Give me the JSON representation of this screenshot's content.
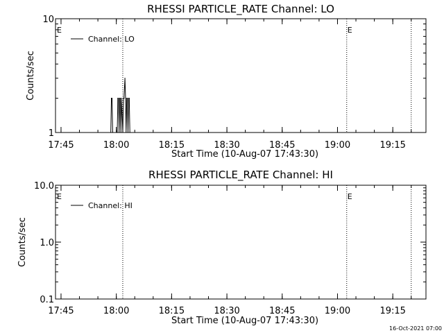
{
  "footer": {
    "timestamp": "16-Oct-2021 07:00"
  },
  "chart_data": [
    {
      "type": "line",
      "title": "RHESSI PARTICLE_RATE Channel: LO",
      "xlabel": "Start Time (10-Aug-07 17:43:30)",
      "ylabel": "Counts/sec",
      "yscale": "log",
      "xlim": [
        "17:43:30",
        "19:24:00"
      ],
      "ylim": [
        1,
        10
      ],
      "x_ticks": [
        "17:45",
        "18:00",
        "18:15",
        "18:30",
        "18:45",
        "19:00",
        "19:15"
      ],
      "y_ticks": [
        "1",
        "10"
      ],
      "legend": {
        "position": "top-left",
        "entries": [
          "Channel: LO"
        ]
      },
      "markers": [
        {
          "time": "18:01:45",
          "label": ""
        },
        {
          "time": "19:02:30",
          "label": "E"
        },
        {
          "time": "19:20:00",
          "label": ""
        }
      ],
      "corner_label": "E",
      "series": [
        {
          "name": "Channel: LO",
          "x": [
            "17:58:30",
            "17:58:40",
            "17:58:50",
            "17:59:00",
            "18:00:15",
            "18:00:25",
            "18:00:35",
            "18:00:45",
            "18:00:55",
            "18:01:05",
            "18:01:15",
            "18:01:25",
            "18:01:45",
            "18:01:55",
            "18:02:05",
            "18:02:20",
            "18:02:30",
            "18:02:40",
            "18:02:50",
            "18:03:00",
            "18:03:10",
            "18:03:20",
            "18:03:30",
            "18:03:40"
          ],
          "y": [
            1,
            2,
            2,
            1,
            1,
            2,
            2,
            1,
            2,
            2,
            1,
            2,
            1,
            2,
            2,
            3,
            2,
            1,
            2,
            2,
            1,
            2,
            2,
            1
          ]
        }
      ]
    },
    {
      "type": "line",
      "title": "RHESSI PARTICLE_RATE Channel: HI",
      "xlabel": "Start Time (10-Aug-07 17:43:30)",
      "ylabel": "Counts/sec",
      "yscale": "log",
      "xlim": [
        "17:43:30",
        "19:24:00"
      ],
      "ylim": [
        0.1,
        10
      ],
      "x_ticks": [
        "17:45",
        "18:00",
        "18:15",
        "18:30",
        "18:45",
        "19:00",
        "19:15"
      ],
      "y_ticks": [
        "0.1",
        "1.0",
        "10.0"
      ],
      "legend": {
        "position": "top-left",
        "entries": [
          "Channel: HI"
        ]
      },
      "markers": [
        {
          "time": "18:01:45",
          "label": ""
        },
        {
          "time": "19:02:30",
          "label": "E"
        },
        {
          "time": "19:20:00",
          "label": ""
        }
      ],
      "corner_label": "E",
      "series": [
        {
          "name": "Channel: HI",
          "x": [],
          "y": []
        }
      ]
    }
  ]
}
